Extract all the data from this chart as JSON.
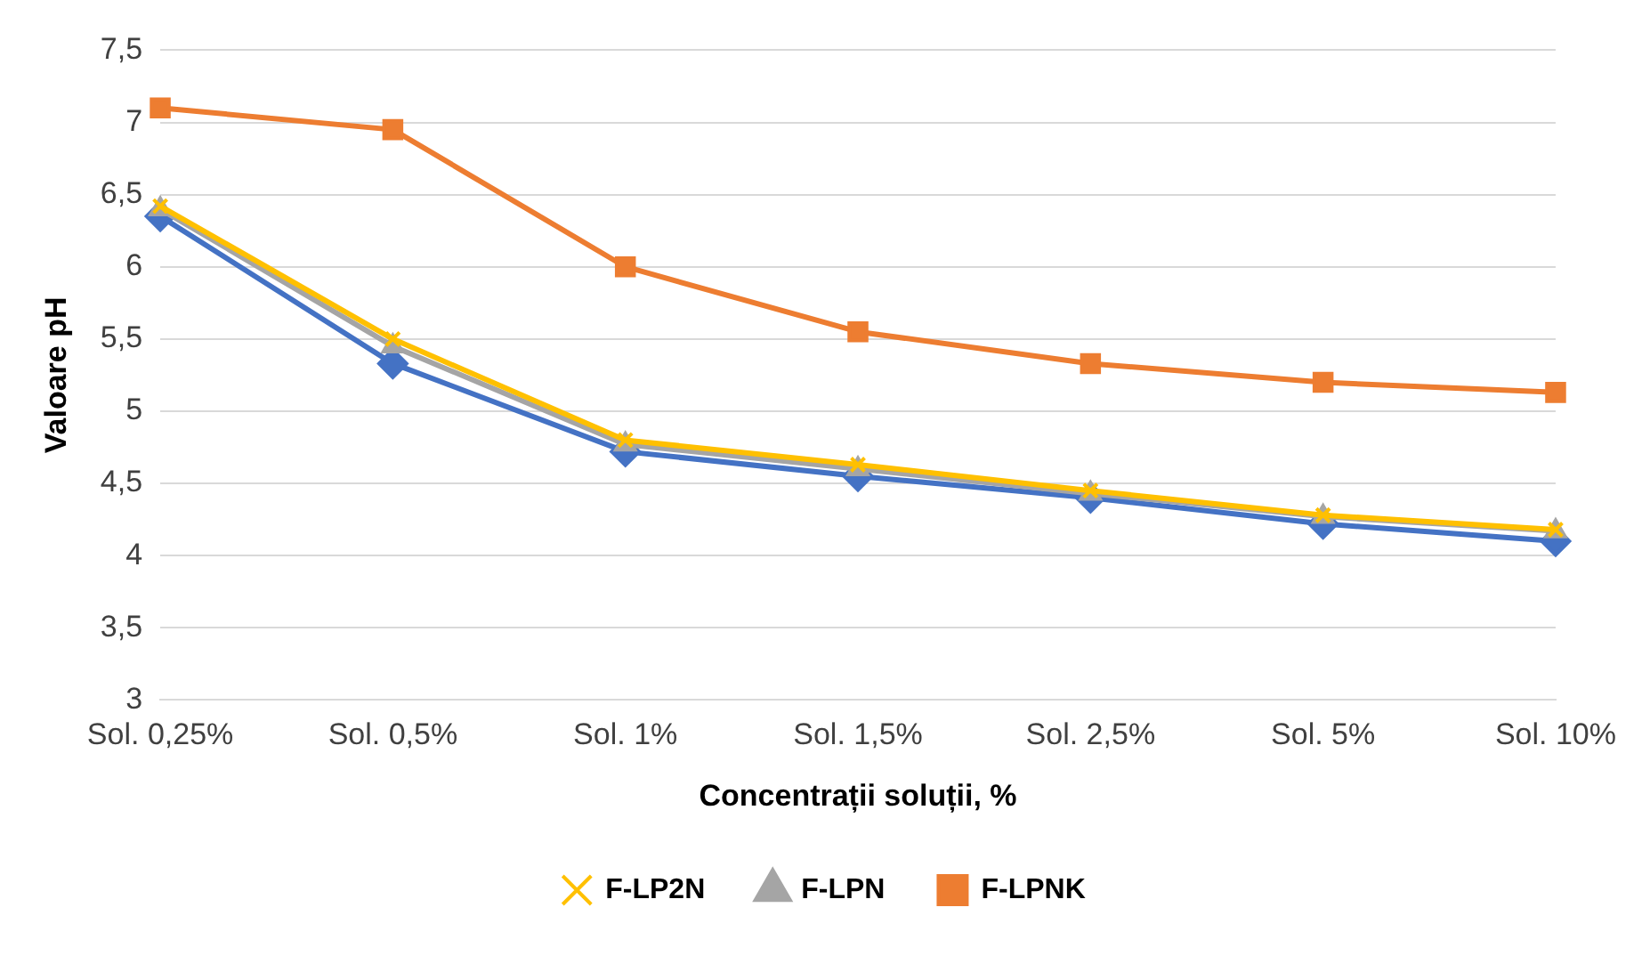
{
  "chart_data": {
    "type": "line",
    "xlabel": "Concentrații soluții, %",
    "ylabel": "Valoare pH",
    "categories": [
      "Sol. 0,25%",
      "Sol. 0,5%",
      "Sol. 1%",
      "Sol. 1,5%",
      "Sol. 2,5%",
      "Sol. 5%",
      "Sol. 10%"
    ],
    "series": [
      {
        "color": "#4472c4",
        "marker": "diamond",
        "values": [
          6.35,
          5.33,
          4.72,
          4.55,
          4.4,
          4.22,
          4.1
        ]
      },
      {
        "name": "F-LPNK",
        "color": "#ed7d31",
        "marker": "square",
        "values": [
          7.1,
          6.95,
          6.0,
          5.55,
          5.33,
          5.2,
          5.13
        ]
      },
      {
        "name": "F-LPN",
        "color": "#a5a5a5",
        "marker": "triangle",
        "values": [
          6.4,
          5.45,
          4.77,
          4.6,
          4.43,
          4.27,
          4.17
        ]
      },
      {
        "name": "F-LP2N",
        "color": "#ffc000",
        "marker": "cross",
        "values": [
          6.42,
          5.5,
          4.8,
          4.63,
          4.45,
          4.28,
          4.18
        ]
      }
    ],
    "ylim": [
      3,
      7.5
    ],
    "yticks": [
      {
        "value": 3,
        "label": "3"
      },
      {
        "value": 3.5,
        "label": "3,5"
      },
      {
        "value": 4,
        "label": "4"
      },
      {
        "value": 4.5,
        "label": "4,5"
      },
      {
        "value": 5,
        "label": "5"
      },
      {
        "value": 5.5,
        "label": "5,5"
      },
      {
        "value": 6,
        "label": "6"
      },
      {
        "value": 6.5,
        "label": "6,5"
      },
      {
        "value": 7,
        "label": "7"
      },
      {
        "value": 7.5,
        "label": "7,5"
      }
    ],
    "grid": "y",
    "legend": "bottom"
  }
}
